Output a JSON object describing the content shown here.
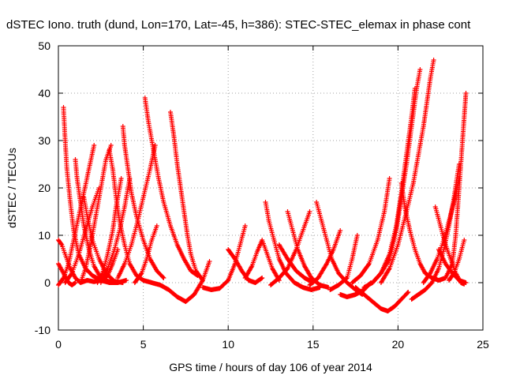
{
  "chart_data": {
    "type": "scatter",
    "title": "dSTEC Iono. truth (dund, Lon=170, Lat=-45, h=386): STEC-STEC_elemax in phase cont",
    "xlabel": "GPS time / hours of day 106 of year 2014",
    "ylabel": "dSTEC  / TECUs",
    "xlim": [
      0,
      25
    ],
    "ylim": [
      -10,
      50
    ],
    "xticks": [
      0,
      5,
      10,
      15,
      20,
      25
    ],
    "yticks": [
      -10,
      0,
      10,
      20,
      30,
      40,
      50
    ],
    "xtick_labels": [
      "0",
      "5",
      "10",
      "15",
      "20",
      "25"
    ],
    "ytick_labels": [
      "-10",
      "0",
      "10",
      "20",
      "30",
      "40",
      "50"
    ],
    "grid": true,
    "marker": "+",
    "marker_color": "#ff0000",
    "series": [
      {
        "points": [
          [
            0.0,
            9
          ],
          [
            0.2,
            8
          ],
          [
            0.4,
            6
          ],
          [
            0.7,
            3
          ],
          [
            1.0,
            1
          ],
          [
            1.3,
            0
          ],
          [
            1.7,
            0.5
          ],
          [
            2.1,
            0.2
          ],
          [
            2.5,
            0.5
          ],
          [
            2.9,
            1.5
          ],
          [
            3.2,
            4
          ],
          [
            3.5,
            7
          ]
        ]
      },
      {
        "points": [
          [
            0.3,
            37
          ],
          [
            0.4,
            30
          ],
          [
            0.5,
            24
          ],
          [
            0.7,
            17
          ],
          [
            0.9,
            11
          ],
          [
            1.2,
            6
          ],
          [
            1.6,
            3
          ],
          [
            2.0,
            1.5
          ],
          [
            2.5,
            0.5
          ],
          [
            3.0,
            0
          ],
          [
            3.5,
            0
          ]
        ]
      },
      {
        "points": [
          [
            0.0,
            -0.5
          ],
          [
            0.3,
            1
          ],
          [
            0.6,
            4
          ],
          [
            0.9,
            9
          ],
          [
            1.2,
            14
          ],
          [
            1.5,
            19
          ],
          [
            1.8,
            24
          ],
          [
            2.1,
            29
          ]
        ]
      },
      {
        "points": [
          [
            0.0,
            4
          ],
          [
            0.3,
            2
          ],
          [
            0.6,
            0
          ],
          [
            0.8,
            -0.5
          ],
          [
            1.0,
            0
          ]
        ]
      },
      {
        "points": [
          [
            1.0,
            26
          ],
          [
            1.1,
            22
          ],
          [
            1.3,
            17
          ],
          [
            1.5,
            12
          ],
          [
            1.8,
            7
          ],
          [
            2.1,
            3.5
          ],
          [
            2.5,
            1
          ],
          [
            3.0,
            0.2
          ],
          [
            3.5,
            0
          ],
          [
            4.0,
            0.5
          ]
        ]
      },
      {
        "points": [
          [
            0.4,
            0
          ],
          [
            0.8,
            2
          ],
          [
            1.2,
            6
          ],
          [
            1.6,
            11
          ],
          [
            2.0,
            16
          ],
          [
            2.4,
            20
          ]
        ]
      },
      {
        "points": [
          [
            1.3,
            0
          ],
          [
            1.6,
            3
          ],
          [
            1.9,
            8
          ],
          [
            2.2,
            14
          ],
          [
            2.5,
            20
          ],
          [
            2.8,
            26
          ],
          [
            3.1,
            29
          ]
        ]
      },
      {
        "points": [
          [
            1.5,
            18
          ],
          [
            1.7,
            14
          ],
          [
            2.0,
            9
          ],
          [
            2.4,
            5
          ],
          [
            2.8,
            2
          ],
          [
            3.3,
            0.3
          ],
          [
            3.8,
            0
          ]
        ]
      },
      {
        "points": [
          [
            2.3,
            0
          ],
          [
            2.6,
            2
          ],
          [
            2.9,
            6
          ],
          [
            3.2,
            11
          ],
          [
            3.4,
            16
          ],
          [
            3.7,
            22
          ]
        ]
      },
      {
        "points": [
          [
            3.0,
            28
          ],
          [
            3.2,
            24
          ],
          [
            3.4,
            18
          ],
          [
            3.6,
            13
          ],
          [
            3.9,
            8
          ],
          [
            4.2,
            4
          ],
          [
            4.6,
            1.5
          ],
          [
            5.0,
            0.5
          ],
          [
            5.5,
            0
          ]
        ]
      },
      {
        "points": [
          [
            3.8,
            33
          ],
          [
            3.9,
            29
          ],
          [
            4.1,
            24
          ],
          [
            4.3,
            19
          ],
          [
            4.6,
            14
          ],
          [
            5.0,
            9
          ],
          [
            5.4,
            5
          ],
          [
            5.8,
            2.5
          ],
          [
            6.2,
            1
          ]
        ]
      },
      {
        "points": [
          [
            2.5,
            0
          ],
          [
            2.9,
            3
          ],
          [
            3.3,
            7
          ],
          [
            3.6,
            11
          ],
          [
            3.9,
            16
          ],
          [
            4.2,
            22
          ]
        ]
      },
      {
        "points": [
          [
            3.5,
            1
          ],
          [
            3.9,
            4
          ],
          [
            4.3,
            8
          ],
          [
            4.6,
            12
          ],
          [
            5.0,
            18
          ],
          [
            5.4,
            24
          ],
          [
            5.7,
            29
          ]
        ]
      },
      {
        "points": [
          [
            4.5,
            0
          ],
          [
            4.9,
            2
          ],
          [
            5.2,
            5
          ],
          [
            5.5,
            9
          ],
          [
            5.8,
            12
          ]
        ]
      },
      {
        "points": [
          [
            5.1,
            39
          ],
          [
            5.3,
            34
          ],
          [
            5.6,
            28
          ],
          [
            5.9,
            22
          ],
          [
            6.2,
            17
          ],
          [
            6.6,
            12
          ],
          [
            7.0,
            8
          ],
          [
            7.4,
            5
          ],
          [
            7.8,
            2.5
          ],
          [
            8.2,
            1.5
          ]
        ]
      },
      {
        "points": [
          [
            6.6,
            36
          ],
          [
            6.8,
            31
          ],
          [
            7.0,
            25
          ],
          [
            7.2,
            20
          ],
          [
            7.4,
            15
          ],
          [
            7.6,
            10
          ],
          [
            7.8,
            6
          ],
          [
            8.1,
            2.5
          ],
          [
            8.5,
            0.5
          ]
        ]
      },
      {
        "points": [
          [
            5.5,
            0
          ],
          [
            6.0,
            -0.5
          ],
          [
            6.5,
            -1.5
          ],
          [
            7.0,
            -3
          ],
          [
            7.5,
            -4
          ],
          [
            8.0,
            -2.5
          ],
          [
            8.5,
            0.5
          ],
          [
            8.9,
            4.5
          ]
        ]
      },
      {
        "points": [
          [
            8.5,
            -1
          ],
          [
            9.0,
            -1.5
          ],
          [
            9.5,
            -1.2
          ],
          [
            10.0,
            0.5
          ],
          [
            10.4,
            4
          ],
          [
            10.7,
            8
          ],
          [
            11.0,
            12
          ]
        ]
      },
      {
        "points": [
          [
            10.0,
            7
          ],
          [
            10.4,
            5
          ],
          [
            10.8,
            2.5
          ],
          [
            11.2,
            0.5
          ],
          [
            11.6,
            0
          ],
          [
            12.0,
            1
          ]
        ]
      },
      {
        "points": [
          [
            11.0,
            1
          ],
          [
            11.4,
            3.5
          ],
          [
            11.7,
            6.5
          ],
          [
            12.0,
            9
          ],
          [
            12.3,
            6
          ],
          [
            12.6,
            3
          ],
          [
            13.0,
            0.5
          ]
        ]
      },
      {
        "points": [
          [
            12.2,
            17
          ],
          [
            12.4,
            13
          ],
          [
            12.7,
            9
          ],
          [
            13.0,
            5
          ],
          [
            13.4,
            2
          ],
          [
            13.9,
            0
          ],
          [
            14.4,
            -1
          ],
          [
            14.9,
            -1.5
          ],
          [
            15.4,
            -1
          ]
        ]
      },
      {
        "points": [
          [
            12.5,
            -0.5
          ],
          [
            13.0,
            1
          ],
          [
            13.5,
            3
          ],
          [
            14.0,
            7
          ],
          [
            14.5,
            12
          ],
          [
            14.8,
            15
          ]
        ]
      },
      {
        "points": [
          [
            13.5,
            15
          ],
          [
            13.8,
            11
          ],
          [
            14.1,
            7
          ],
          [
            14.5,
            3.5
          ],
          [
            14.9,
            1
          ],
          [
            15.4,
            -0.5
          ],
          [
            15.9,
            -1
          ]
        ]
      },
      {
        "points": [
          [
            13.0,
            8
          ],
          [
            13.5,
            5
          ],
          [
            14.0,
            2.5
          ],
          [
            14.5,
            1
          ],
          [
            15.0,
            0
          ]
        ]
      },
      {
        "points": [
          [
            15.2,
            17
          ],
          [
            15.5,
            13
          ],
          [
            15.8,
            9
          ],
          [
            16.1,
            5
          ],
          [
            16.5,
            2
          ],
          [
            17.0,
            0
          ],
          [
            17.5,
            -1.5
          ],
          [
            17.9,
            -2.5
          ]
        ]
      },
      {
        "points": [
          [
            14.8,
            -0.5
          ],
          [
            15.3,
            1
          ],
          [
            15.8,
            4
          ],
          [
            16.2,
            7
          ],
          [
            16.6,
            11
          ]
        ]
      },
      {
        "points": [
          [
            16.0,
            -1.5
          ],
          [
            16.5,
            -0.5
          ],
          [
            17.0,
            1
          ],
          [
            17.3,
            5
          ],
          [
            17.6,
            10
          ]
        ]
      },
      {
        "points": [
          [
            16.6,
            -2.5
          ],
          [
            17.0,
            -3
          ],
          [
            17.5,
            -2.5
          ],
          [
            18.0,
            -1.5
          ],
          [
            18.4,
            0
          ]
        ]
      },
      {
        "points": [
          [
            17.5,
            -1
          ],
          [
            18.0,
            -2.5
          ],
          [
            18.5,
            -4
          ],
          [
            19.0,
            -5.5
          ],
          [
            19.4,
            -6
          ],
          [
            19.8,
            -5
          ],
          [
            20.2,
            -3.5
          ],
          [
            20.6,
            -2
          ]
        ]
      },
      {
        "points": [
          [
            17.3,
            0
          ],
          [
            17.8,
            1.5
          ],
          [
            18.3,
            4
          ],
          [
            18.8,
            9
          ],
          [
            19.2,
            15
          ],
          [
            19.5,
            22
          ]
        ]
      },
      {
        "points": [
          [
            18.0,
            -1
          ],
          [
            18.5,
            0
          ],
          [
            19.0,
            2
          ],
          [
            19.5,
            6
          ],
          [
            19.9,
            12
          ],
          [
            20.2,
            19
          ],
          [
            20.5,
            27
          ],
          [
            20.8,
            35
          ],
          [
            21.0,
            41
          ]
        ]
      },
      {
        "points": [
          [
            18.5,
            0
          ],
          [
            19.0,
            2
          ],
          [
            19.5,
            5
          ],
          [
            19.9,
            11
          ],
          [
            20.2,
            18
          ],
          [
            20.5,
            25
          ],
          [
            20.8,
            33
          ],
          [
            21.1,
            41
          ],
          [
            21.3,
            45
          ]
        ]
      },
      {
        "points": [
          [
            19.0,
            0
          ],
          [
            19.5,
            3
          ],
          [
            20.0,
            8
          ],
          [
            20.5,
            15
          ],
          [
            20.9,
            21
          ],
          [
            21.2,
            27
          ],
          [
            21.5,
            33
          ],
          [
            21.7,
            38
          ],
          [
            21.9,
            43
          ],
          [
            22.1,
            47
          ]
        ]
      },
      {
        "points": [
          [
            20.2,
            21
          ],
          [
            20.4,
            16
          ],
          [
            20.7,
            11
          ],
          [
            21.0,
            7
          ],
          [
            21.3,
            4
          ],
          [
            21.6,
            2
          ],
          [
            22.0,
            1
          ]
        ]
      },
      {
        "points": [
          [
            20.8,
            -3.5
          ],
          [
            21.2,
            -2.5
          ],
          [
            21.6,
            -1.5
          ],
          [
            22.0,
            0
          ],
          [
            22.4,
            3
          ],
          [
            22.7,
            7
          ],
          [
            23.0,
            12
          ],
          [
            23.3,
            18
          ],
          [
            23.6,
            25
          ]
        ]
      },
      {
        "points": [
          [
            22.0,
            1
          ],
          [
            22.4,
            0.5
          ],
          [
            22.8,
            1
          ],
          [
            23.2,
            4
          ],
          [
            23.4,
            10
          ],
          [
            23.6,
            20
          ],
          [
            23.8,
            30
          ],
          [
            23.9,
            35
          ],
          [
            24.0,
            40
          ]
        ]
      },
      {
        "points": [
          [
            22.2,
            16
          ],
          [
            22.5,
            12
          ],
          [
            22.8,
            8
          ],
          [
            23.1,
            5
          ],
          [
            23.4,
            2
          ],
          [
            23.7,
            0
          ],
          [
            23.9,
            -0.3
          ]
        ]
      },
      {
        "points": [
          [
            21.5,
            0
          ],
          [
            21.9,
            2
          ],
          [
            22.3,
            5
          ],
          [
            22.7,
            9
          ],
          [
            23.0,
            13
          ],
          [
            23.3,
            17
          ],
          [
            23.6,
            22
          ]
        ]
      },
      {
        "points": [
          [
            22.4,
            7
          ],
          [
            22.8,
            4
          ],
          [
            23.2,
            2
          ],
          [
            23.6,
            0.5
          ],
          [
            24.0,
            0
          ]
        ]
      },
      {
        "points": [
          [
            23.0,
            0.5
          ],
          [
            23.3,
            2
          ],
          [
            23.6,
            5
          ],
          [
            23.9,
            9
          ]
        ]
      }
    ]
  }
}
